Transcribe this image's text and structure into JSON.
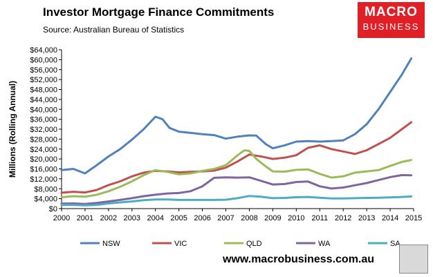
{
  "header": {
    "title": "Investor Mortgage Finance Commitments",
    "subtitle": "Source: Australian Bureau of Statistics"
  },
  "logo": {
    "line1": "MACRO",
    "line2": "BUSINESS"
  },
  "footer": {
    "url": "www.macrobusiness.com.au"
  },
  "chart_data": {
    "type": "line",
    "title": "Investor Mortgage Finance Commitments",
    "ylabel": "Millions (Rolling Annual)",
    "xlabel": "",
    "xlim": [
      2000,
      2015
    ],
    "ylim": [
      0,
      64000
    ],
    "x_ticks": [
      "2000",
      "2001",
      "2002",
      "2003",
      "2004",
      "2005",
      "2006",
      "2007",
      "2008",
      "2009",
      "2010",
      "2011",
      "2012",
      "2013",
      "2014",
      "2015"
    ],
    "y_ticks": [
      "$0",
      "$4,000",
      "$8,000",
      "$12,000",
      "$16,000",
      "$20,000",
      "$24,000",
      "$28,000",
      "$32,000",
      "$36,000",
      "$40,000",
      "$44,000",
      "$48,000",
      "$52,000",
      "$56,000",
      "$60,000",
      "$64,000"
    ],
    "grid": false,
    "legend": "bottom",
    "series": [
      {
        "name": "NSW",
        "color": "#4f81bd",
        "x": [
          2000,
          2000.5,
          2001,
          2001.5,
          2002,
          2002.5,
          2003,
          2003.5,
          2004,
          2004.3,
          2004.6,
          2005,
          2005.5,
          2006,
          2006.5,
          2007,
          2007.5,
          2008,
          2008.3,
          2008.7,
          2009,
          2009.5,
          2010,
          2010.5,
          2011,
          2011.5,
          2012,
          2012.5,
          2013,
          2013.5,
          2014,
          2014.5,
          2014.9
        ],
        "y": [
          15500,
          16000,
          14200,
          17500,
          21000,
          24000,
          27800,
          32000,
          37000,
          36000,
          32500,
          31000,
          30500,
          30000,
          29600,
          28200,
          29000,
          29500,
          29400,
          26000,
          24300,
          25500,
          27000,
          27200,
          27000,
          27200,
          27500,
          30000,
          34000,
          40000,
          47000,
          54000,
          60500
        ]
      },
      {
        "name": "VIC",
        "color": "#c0504d",
        "x": [
          2000,
          2000.5,
          2001,
          2001.5,
          2002,
          2002.5,
          2003,
          2003.5,
          2004,
          2004.5,
          2005,
          2005.5,
          2006,
          2006.5,
          2007,
          2007.5,
          2008,
          2008.5,
          2009,
          2009.5,
          2010,
          2010.5,
          2011,
          2011.5,
          2012,
          2012.5,
          2013,
          2013.5,
          2014,
          2014.5,
          2014.9
        ],
        "y": [
          6400,
          6800,
          6500,
          7500,
          9500,
          11000,
          13000,
          14500,
          15200,
          15000,
          14600,
          14800,
          15000,
          15300,
          16500,
          19000,
          21800,
          21000,
          20000,
          20500,
          21500,
          24500,
          25500,
          24000,
          23000,
          22000,
          23500,
          26000,
          28500,
          32000,
          34800
        ]
      },
      {
        "name": "QLD",
        "color": "#9bbb59",
        "x": [
          2000,
          2000.5,
          2001,
          2001.5,
          2002,
          2002.5,
          2003,
          2003.5,
          2004,
          2004.5,
          2005,
          2005.5,
          2006,
          2006.5,
          2007,
          2007.5,
          2007.8,
          2008,
          2008.3,
          2008.7,
          2009,
          2009.5,
          2010,
          2010.5,
          2011,
          2011.5,
          2012,
          2012.5,
          2013,
          2013.5,
          2014,
          2014.5,
          2014.9
        ],
        "y": [
          4600,
          5000,
          4800,
          5600,
          7000,
          8800,
          11000,
          13500,
          15500,
          14800,
          13800,
          14200,
          15200,
          16000,
          17500,
          21500,
          23500,
          23200,
          20000,
          17000,
          15000,
          14900,
          15600,
          15800,
          14000,
          12500,
          13000,
          14500,
          15000,
          15500,
          17200,
          18800,
          19600
        ]
      },
      {
        "name": "WA",
        "color": "#8064a2",
        "x": [
          2000,
          2000.5,
          2001,
          2001.5,
          2002,
          2002.5,
          2003,
          2003.5,
          2004,
          2004.5,
          2005,
          2005.5,
          2006,
          2006.5,
          2007,
          2007.5,
          2008,
          2008.5,
          2009,
          2009.5,
          2010,
          2010.5,
          2011,
          2011.5,
          2012,
          2012.5,
          2013,
          2013.5,
          2014,
          2014.5,
          2014.9
        ],
        "y": [
          2000,
          2100,
          1900,
          2300,
          2900,
          3500,
          4200,
          5000,
          5600,
          6100,
          6300,
          7000,
          9000,
          12400,
          12600,
          12500,
          12600,
          11200,
          9700,
          9900,
          10700,
          10900,
          9000,
          8100,
          8500,
          9400,
          10300,
          11500,
          12700,
          13500,
          13400
        ]
      },
      {
        "name": "SA",
        "color": "#4bacc6",
        "x": [
          2000,
          2000.5,
          2001,
          2001.5,
          2002,
          2002.5,
          2003,
          2003.5,
          2004,
          2004.5,
          2005,
          2005.5,
          2006,
          2006.5,
          2007,
          2007.5,
          2008,
          2008.5,
          2009,
          2009.5,
          2010,
          2010.5,
          2011,
          2011.5,
          2012,
          2012.5,
          2013,
          2013.5,
          2014,
          2014.5,
          2014.9
        ],
        "y": [
          1500,
          1500,
          1300,
          1500,
          2100,
          2500,
          2900,
          3400,
          3700,
          3700,
          3500,
          3500,
          3500,
          3500,
          3600,
          4200,
          5100,
          4800,
          4200,
          4300,
          4600,
          4700,
          4400,
          4100,
          4100,
          4200,
          4300,
          4400,
          4500,
          4700,
          4900
        ]
      }
    ]
  }
}
